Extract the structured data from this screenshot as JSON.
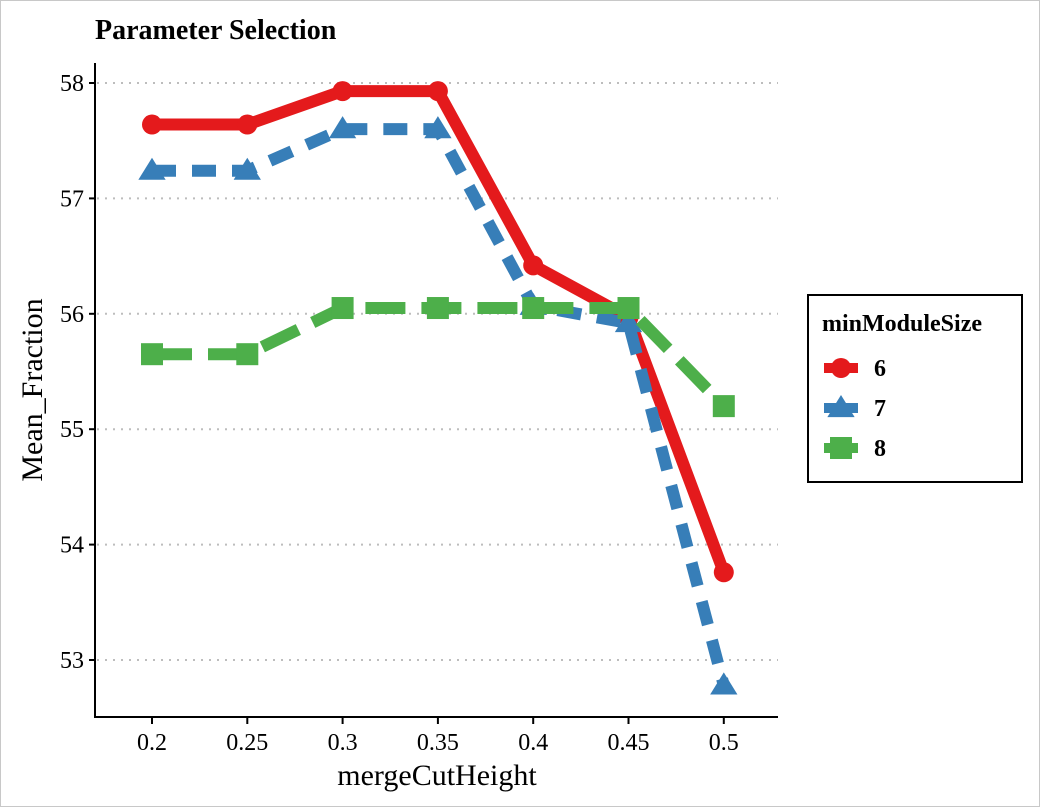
{
  "chart_data": {
    "type": "line",
    "title": "Parameter Selection",
    "xlabel": "mergeCutHeight",
    "ylabel": "Mean_Fraction",
    "categories": [
      "0.2",
      "0.25",
      "0.3",
      "0.35",
      "0.4",
      "0.45",
      "0.5"
    ],
    "ylim": [
      52.5,
      58.2
    ],
    "yticks": [
      53,
      54,
      55,
      56,
      57,
      58
    ],
    "grid": "horizontal dotted",
    "legend": {
      "title": "minModuleSize",
      "position": "right"
    },
    "series": [
      {
        "name": "6",
        "color": "#e41a1c",
        "linetype": "solid",
        "marker": "circle",
        "values": [
          57.64,
          57.64,
          57.93,
          57.93,
          56.42,
          55.97,
          53.76
        ]
      },
      {
        "name": "7",
        "color": "#377eb8",
        "linetype": "dashed",
        "marker": "triangle",
        "values": [
          57.24,
          57.24,
          57.6,
          57.6,
          56.07,
          55.92,
          52.78
        ]
      },
      {
        "name": "8",
        "color": "#4daf4a",
        "linetype": "longdash",
        "marker": "square",
        "values": [
          55.65,
          55.65,
          56.05,
          56.05,
          56.05,
          56.05,
          55.2
        ]
      }
    ]
  }
}
